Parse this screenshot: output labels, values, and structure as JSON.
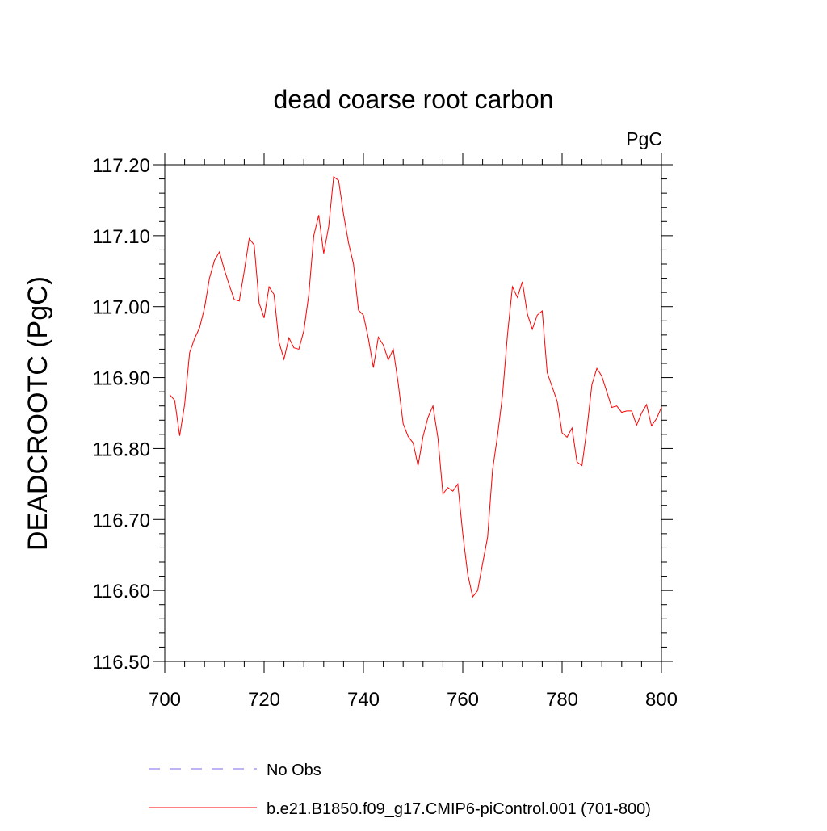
{
  "chart_data": {
    "type": "line",
    "title": "dead coarse root carbon",
    "units_label": "PgC",
    "ylabel": "DEADCROOTC  (PgC)",
    "xlabel": "",
    "xlim": [
      700,
      800
    ],
    "ylim": [
      116.5,
      117.2
    ],
    "x_ticks": [
      700,
      720,
      740,
      760,
      780,
      800
    ],
    "x_tick_labels": [
      "700",
      "720",
      "740",
      "760",
      "780",
      "800"
    ],
    "y_ticks": [
      116.5,
      116.6,
      116.7,
      116.8,
      116.9,
      117.0,
      117.1,
      117.2
    ],
    "y_tick_labels": [
      "116.50",
      "116.60",
      "116.70",
      "116.80",
      "116.90",
      "117.00",
      "117.10",
      "117.20"
    ],
    "grid": false,
    "legend_position": "bottom-left",
    "series": [
      {
        "name": "b.e21.B1850.f09_g17.CMIP6-piControl.001 (701-800)",
        "color": "#ff0000",
        "style": "solid",
        "x": [
          701,
          702,
          703,
          704,
          705,
          706,
          707,
          708,
          709,
          710,
          711,
          712,
          713,
          714,
          715,
          716,
          717,
          718,
          719,
          720,
          721,
          722,
          723,
          724,
          725,
          726,
          727,
          728,
          729,
          730,
          731,
          732,
          733,
          734,
          735,
          736,
          737,
          738,
          739,
          740,
          741,
          742,
          743,
          744,
          745,
          746,
          747,
          748,
          749,
          750,
          751,
          752,
          753,
          754,
          755,
          756,
          757,
          758,
          759,
          760,
          761,
          762,
          763,
          764,
          765,
          766,
          767,
          768,
          769,
          770,
          771,
          772,
          773,
          774,
          775,
          776,
          777,
          778,
          779,
          780,
          781,
          782,
          783,
          784,
          785,
          786,
          787,
          788,
          789,
          790,
          791,
          792,
          793,
          794,
          795,
          796,
          797,
          798,
          799,
          800
        ],
        "values": [
          116.876,
          116.868,
          116.818,
          116.862,
          116.935,
          116.955,
          116.97,
          116.998,
          117.04,
          117.065,
          117.077,
          117.052,
          117.03,
          117.01,
          117.008,
          117.05,
          117.096,
          117.087,
          117.005,
          116.984,
          117.028,
          117.017,
          116.95,
          116.926,
          116.956,
          116.942,
          116.94,
          116.966,
          117.017,
          117.1,
          117.129,
          117.075,
          117.113,
          117.183,
          117.178,
          117.13,
          117.09,
          117.06,
          116.995,
          116.988,
          116.955,
          116.914,
          116.957,
          116.946,
          116.925,
          116.94,
          116.892,
          116.835,
          116.817,
          116.808,
          116.776,
          116.817,
          116.844,
          116.86,
          116.815,
          116.736,
          116.745,
          116.74,
          116.75,
          116.68,
          116.623,
          116.591,
          116.6,
          116.638,
          116.675,
          116.77,
          116.818,
          116.875,
          116.96,
          117.028,
          117.013,
          117.035,
          116.99,
          116.968,
          116.988,
          116.994,
          116.907,
          116.887,
          116.867,
          116.822,
          116.816,
          116.829,
          116.781,
          116.776,
          116.828,
          116.89,
          116.913,
          116.902,
          116.88,
          116.858,
          116.86,
          116.851,
          116.853,
          116.853,
          116.833,
          116.85,
          116.862,
          116.832,
          116.842,
          116.858
        ]
      },
      {
        "name": "No Obs",
        "color": "#7b68ee",
        "style": "dashed",
        "x": [],
        "values": []
      }
    ]
  }
}
